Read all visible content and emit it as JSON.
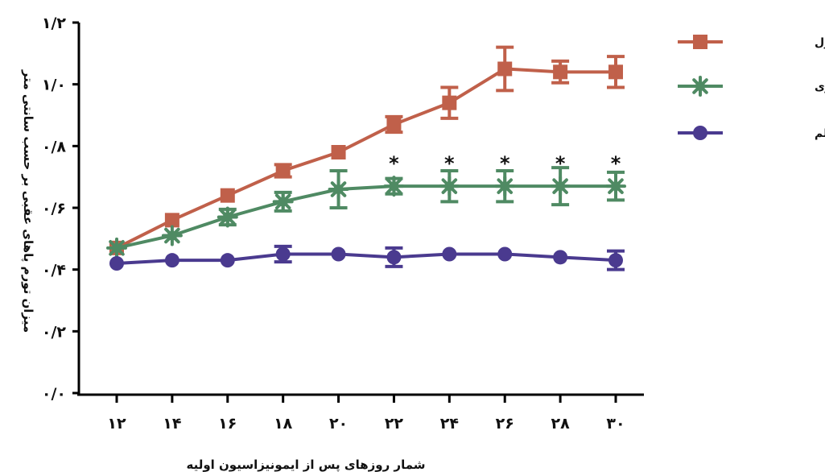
{
  "chart_data": {
    "type": "line",
    "xlabel": "شمار روزهای پس از ایمونیزاسیون اولیه",
    "ylabel": "میزان تورم پاهای عقبی بر حسب سانتی متر",
    "x": [
      12,
      14,
      16,
      18,
      20,
      22,
      24,
      26,
      28,
      30
    ],
    "x_tick_labels": [
      "۱۲",
      "۱۴",
      "۱۶",
      "۱۸",
      "۲۰",
      "۲۲",
      "۲۴",
      "۲۶",
      "۲۸",
      "۳۰"
    ],
    "ylim": [
      0,
      1.2
    ],
    "y_ticks": [
      0,
      0.2,
      0.4,
      0.6,
      0.8,
      1.0,
      1.2
    ],
    "y_tick_labels": [
      "۰/۰",
      "۰/۲",
      "۰/۴",
      "۰/۶",
      "۰/۸",
      "۱/۰",
      "۱/۲"
    ],
    "grid": false,
    "legend_position": "top-right",
    "significance_marker": "*",
    "significance_x": [
      22,
      24,
      26,
      28,
      30
    ],
    "series": [
      {
        "name": "گروه کنترل",
        "color": "#c0604a",
        "marker": "square",
        "values": [
          0.47,
          0.56,
          0.64,
          0.72,
          0.78,
          0.87,
          0.94,
          1.05,
          1.04,
          1.04
        ],
        "errors": [
          0.0,
          0.0,
          0.0,
          0.02,
          0.0,
          0.025,
          0.05,
          0.07,
          0.035,
          0.05
        ]
      },
      {
        "name": "گروه پیشگیری",
        "color": "#4f8a63",
        "marker": "star",
        "values": [
          0.47,
          0.51,
          0.57,
          0.62,
          0.66,
          0.67,
          0.67,
          0.67,
          0.67,
          0.67
        ],
        "errors": [
          0.0,
          0.0,
          0.025,
          0.03,
          0.06,
          0.025,
          0.05,
          0.05,
          0.06,
          0.045
        ]
      },
      {
        "name": "گروه کنترل سالم",
        "color": "#4a3a8f",
        "marker": "circle",
        "values": [
          0.42,
          0.43,
          0.43,
          0.45,
          0.45,
          0.44,
          0.45,
          0.45,
          0.44,
          0.43
        ],
        "errors": [
          0.0,
          0.0,
          0.0,
          0.025,
          0.0,
          0.03,
          0.0,
          0.0,
          0.0,
          0.03
        ]
      }
    ]
  }
}
